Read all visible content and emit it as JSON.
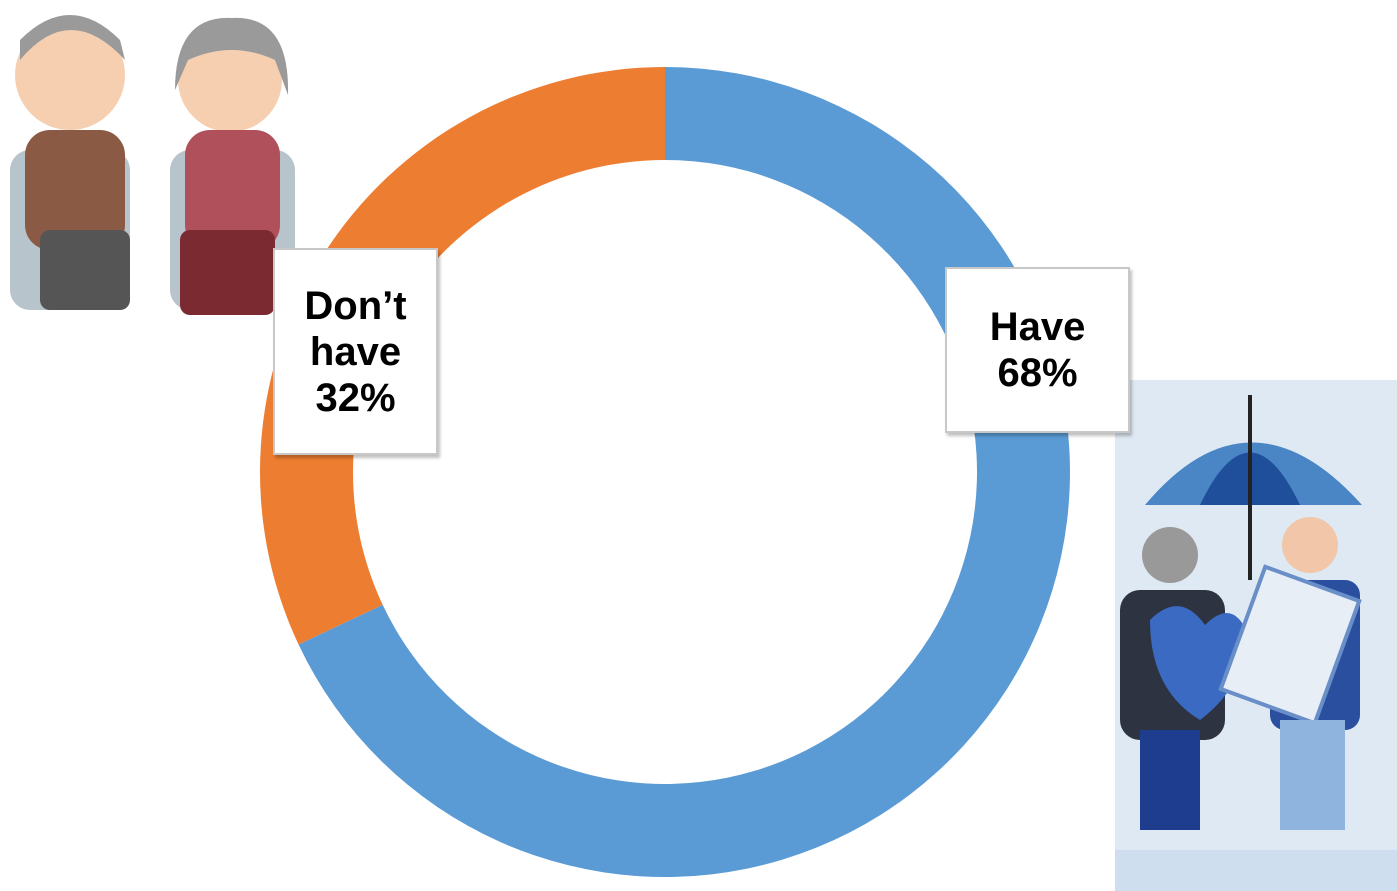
{
  "chart_data": {
    "type": "donut",
    "categories": [
      "Have",
      "Don’t have"
    ],
    "values": [
      68,
      32
    ],
    "value_labels": [
      "68%",
      "32%"
    ],
    "colors": [
      "#5b9bd5",
      "#ed7d31"
    ]
  }
}
